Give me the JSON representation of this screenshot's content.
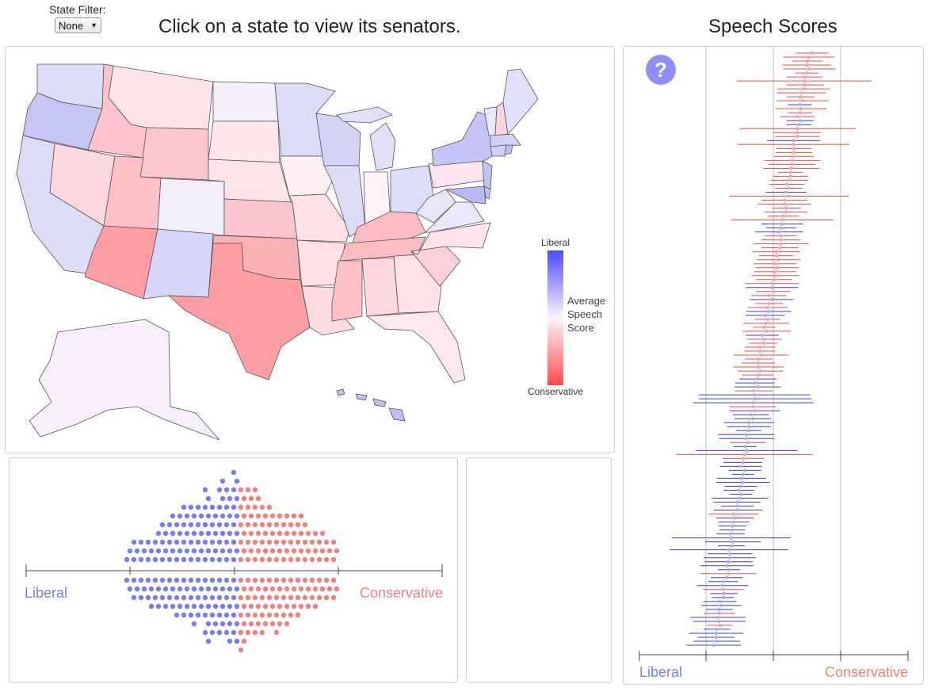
{
  "filter": {
    "label": "State Filter:",
    "selected": "None"
  },
  "map": {
    "title": "Click on a state to view its senators.",
    "legend": {
      "top_label": "Liberal",
      "bottom_label": "Conservative",
      "title_lines": [
        "Average",
        "Speech",
        "Score"
      ]
    }
  },
  "dotplot": {
    "left_label": "Liberal",
    "right_label": "Conservative"
  },
  "scores": {
    "title": "Speech Scores",
    "help_icon": "?",
    "left_label": "Liberal",
    "right_label": "Conservative"
  },
  "colors": {
    "liberal": "#7b7bf0",
    "conservative": "#f08080",
    "legend_top": "#4b4bff",
    "legend_bottom": "#ff4b4b",
    "help": "#8f8ff3"
  }
}
